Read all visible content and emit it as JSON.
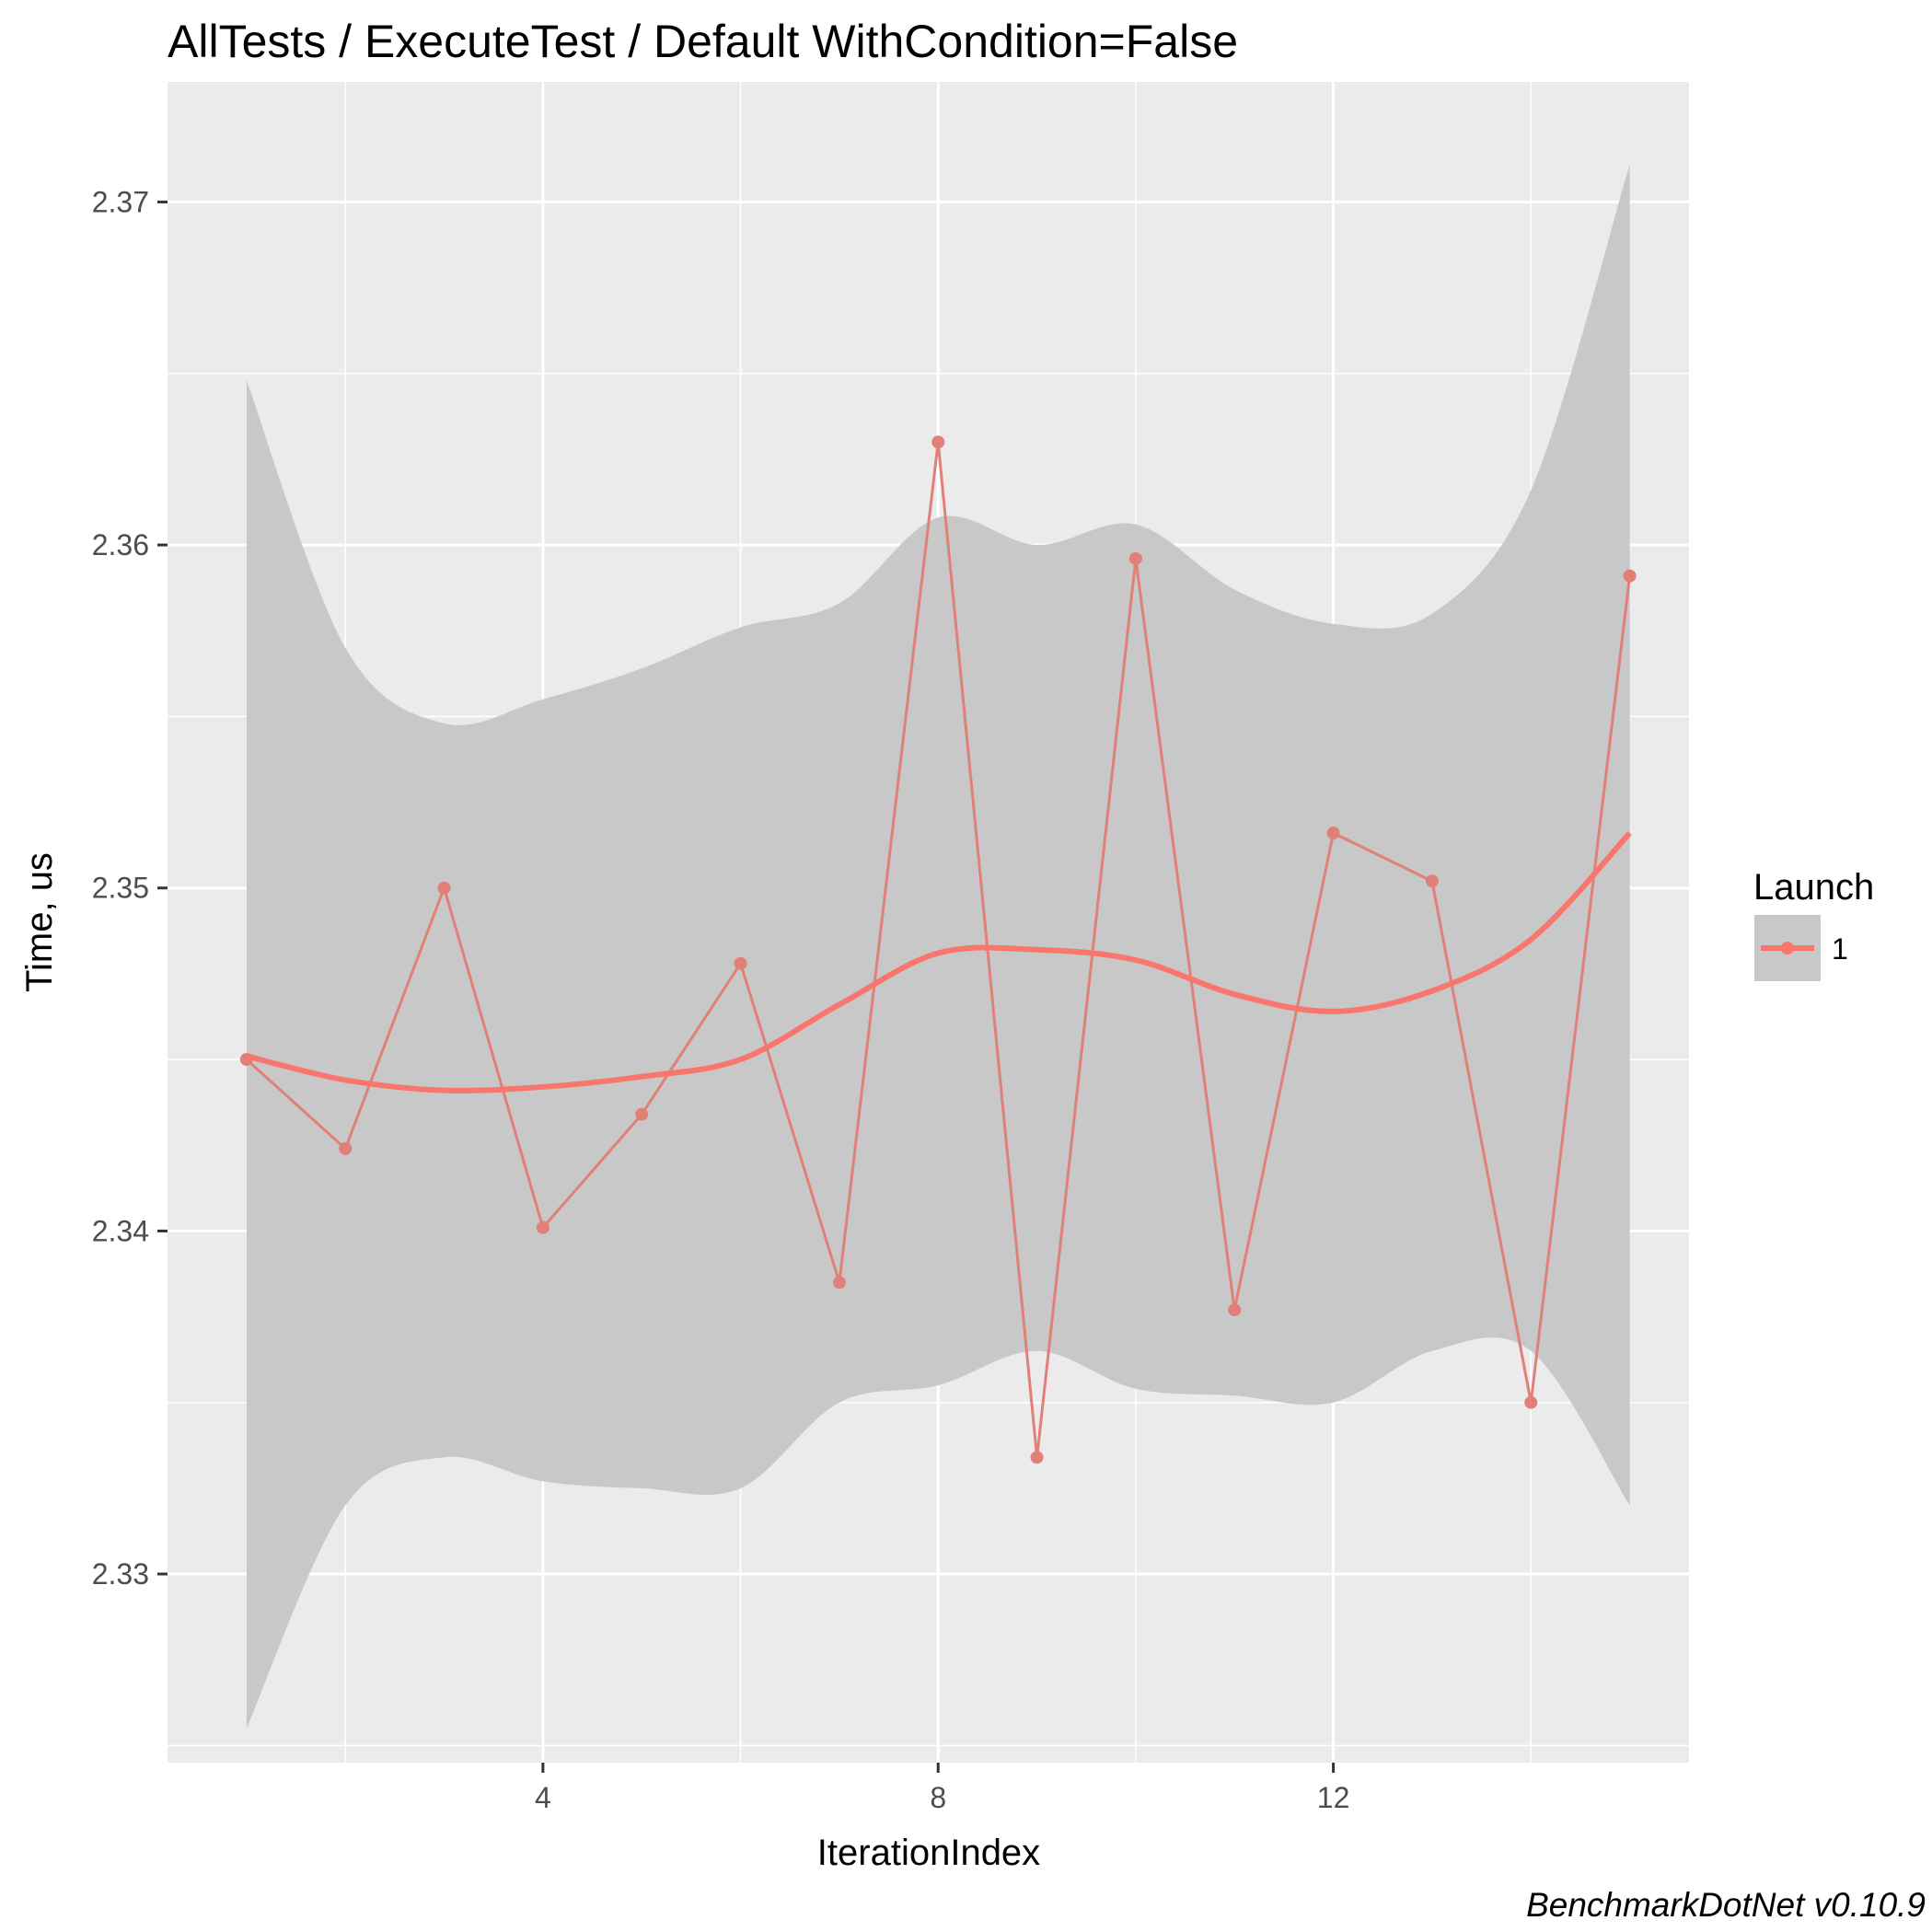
{
  "colors": {
    "panel": "#EBEBEB",
    "grid_major": "#FFFFFF",
    "series": "#F8766D",
    "series_line": "#E08078",
    "ribbon": "#C8C8C8",
    "tick": "#333333"
  },
  "caption": "BenchmarkDotNet v0.10.9",
  "chart_data": {
    "type": "line",
    "title": "AllTests / ExecuteTest / Default WithCondition=False",
    "xlabel": "IterationIndex",
    "ylabel": "Time, us",
    "xlim": [
      0.2,
      15.6
    ],
    "ylim": [
      2.3245,
      2.3735
    ],
    "x_ticks": [
      4,
      8,
      12
    ],
    "x_tick_labels": [
      "4",
      "8",
      "12"
    ],
    "y_ticks": [
      2.33,
      2.34,
      2.35,
      2.36,
      2.37
    ],
    "y_tick_labels": [
      "2.33",
      "2.34",
      "2.35",
      "2.36",
      "2.37"
    ],
    "grid": true,
    "legend": {
      "title": "Launch",
      "position": "right",
      "entries": [
        "1"
      ]
    },
    "series": [
      {
        "name": "1",
        "x": [
          1,
          2,
          3,
          4,
          5,
          6,
          7,
          8,
          9,
          10,
          11,
          12,
          13,
          14,
          15
        ],
        "values": [
          2.345,
          2.3424,
          2.35,
          2.3401,
          2.3434,
          2.3478,
          2.3385,
          2.363,
          2.3334,
          2.3596,
          2.3377,
          2.3516,
          2.3502,
          2.335,
          2.3591
        ]
      }
    ],
    "smooth": {
      "x": [
        1,
        2,
        3,
        4,
        5,
        6,
        7,
        8,
        9,
        10,
        11,
        12,
        13,
        14,
        15
      ],
      "values": [
        2.3451,
        2.3444,
        2.3441,
        2.3442,
        2.3445,
        2.345,
        2.3466,
        2.3481,
        2.3482,
        2.3479,
        2.3469,
        2.3464,
        2.347,
        2.3485,
        2.3516
      ],
      "lower": [
        2.3255,
        2.332,
        2.3334,
        2.3327,
        2.3325,
        2.3325,
        2.335,
        2.3355,
        2.3365,
        2.3354,
        2.3352,
        2.335,
        2.3365,
        2.3365,
        2.332
      ],
      "upper": [
        2.3648,
        2.357,
        2.3548,
        2.3555,
        2.3564,
        2.3576,
        2.3583,
        2.3608,
        2.36,
        2.3606,
        2.3587,
        2.3577,
        2.358,
        2.3616,
        2.3711
      ]
    }
  }
}
